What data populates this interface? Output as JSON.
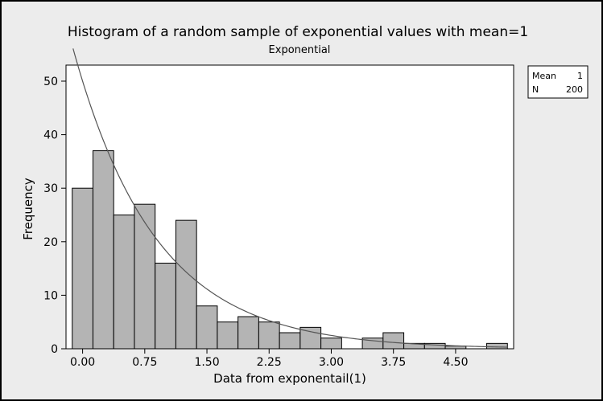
{
  "chart_data": {
    "type": "bar",
    "title": "Histogram of a random sample of exponential values with mean=1",
    "subtitle": "Exponential",
    "xlabel": "Data from exponentail(1)",
    "ylabel": "Frequency",
    "bin_width": 0.25,
    "first_bin_center": 0,
    "values": [
      30,
      37,
      25,
      27,
      16,
      24,
      8,
      5,
      6,
      5,
      3,
      4,
      2,
      0,
      2,
      3,
      1,
      1,
      0.5,
      0,
      1
    ],
    "x_ticks": [
      "0.00",
      "0.75",
      "1.50",
      "2.25",
      "3.00",
      "3.75",
      "4.50"
    ],
    "x_tick_values": [
      0,
      0.75,
      1.5,
      2.25,
      3.0,
      3.75,
      4.5
    ],
    "y_ticks": [
      "0",
      "10",
      "20",
      "30",
      "40",
      "50"
    ],
    "y_tick_values": [
      0,
      10,
      20,
      30,
      40,
      50
    ],
    "xlim": [
      -0.2,
      5.2
    ],
    "ylim": [
      0,
      53
    ],
    "fit_curve": {
      "distribution": "exponential",
      "mean": 1,
      "n": 200,
      "bin_width": 0.25
    },
    "bar_color": "#b4b4b4",
    "bar_edge_color": "#000000",
    "plot_background": "#ffffff",
    "curve_color": "#555555",
    "grid": false,
    "legend_position": "top-right",
    "legend": [
      {
        "label": "Mean",
        "value": "1"
      },
      {
        "label": "N",
        "value": "200"
      }
    ]
  }
}
